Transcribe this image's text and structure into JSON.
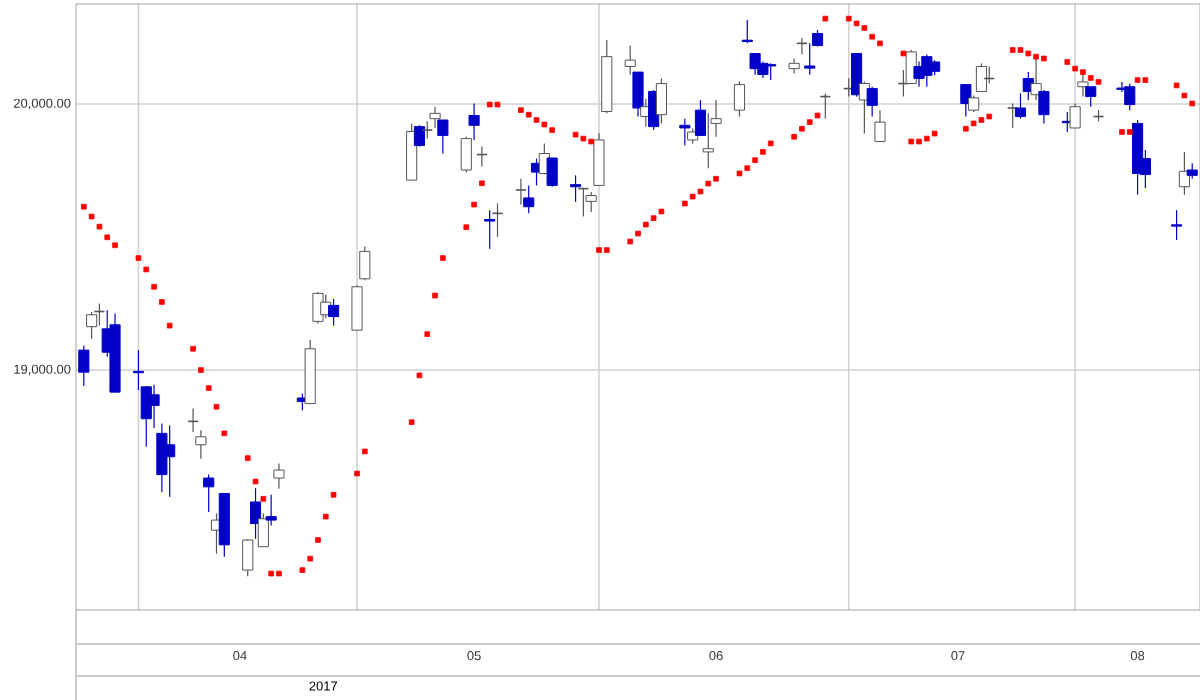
{
  "chart_data": {
    "type": "candlestick",
    "x": [
      "2017-03-27",
      "2017-03-28",
      "2017-03-29",
      "2017-03-30",
      "2017-03-31",
      "2017-04-03",
      "2017-04-04",
      "2017-04-05",
      "2017-04-06",
      "2017-04-07",
      "2017-04-10",
      "2017-04-11",
      "2017-04-12",
      "2017-04-13",
      "2017-04-14",
      "2017-04-17",
      "2017-04-18",
      "2017-04-19",
      "2017-04-20",
      "2017-04-21",
      "2017-04-24",
      "2017-04-25",
      "2017-04-26",
      "2017-04-27",
      "2017-04-28",
      "2017-05-01",
      "2017-05-02",
      "2017-05-08",
      "2017-05-09",
      "2017-05-10",
      "2017-05-11",
      "2017-05-12",
      "2017-05-15",
      "2017-05-16",
      "2017-05-17",
      "2017-05-18",
      "2017-05-19",
      "2017-05-22",
      "2017-05-23",
      "2017-05-24",
      "2017-05-25",
      "2017-05-26",
      "2017-05-29",
      "2017-05-30",
      "2017-05-31",
      "2017-06-01",
      "2017-06-02",
      "2017-06-05",
      "2017-06-06",
      "2017-06-07",
      "2017-06-08",
      "2017-06-09",
      "2017-06-12",
      "2017-06-13",
      "2017-06-14",
      "2017-06-15",
      "2017-06-16",
      "2017-06-19",
      "2017-06-20",
      "2017-06-21",
      "2017-06-22",
      "2017-06-23",
      "2017-06-26",
      "2017-06-27",
      "2017-06-28",
      "2017-06-29",
      "2017-06-30",
      "2017-07-03",
      "2017-07-04",
      "2017-07-05",
      "2017-07-06",
      "2017-07-07",
      "2017-07-10",
      "2017-07-11",
      "2017-07-12",
      "2017-07-13",
      "2017-07-14",
      "2017-07-18",
      "2017-07-19",
      "2017-07-20",
      "2017-07-21",
      "2017-07-24",
      "2017-07-25",
      "2017-07-26",
      "2017-07-27",
      "2017-07-28",
      "2017-07-31",
      "2017-08-01",
      "2017-08-02",
      "2017-08-03",
      "2017-08-04",
      "2017-08-07",
      "2017-08-08",
      "2017-08-09",
      "2017-08-10",
      "2017-08-14",
      "2017-08-15",
      "2017-08-16"
    ],
    "ohlc": [
      [
        19075,
        19092,
        18940,
        18992
      ],
      [
        19163,
        19218,
        19118,
        19208
      ],
      [
        19220,
        19250,
        19167,
        19220
      ],
      [
        19155,
        19225,
        19050,
        19067
      ],
      [
        19170,
        19213,
        18917,
        18917
      ],
      [
        18995,
        19075,
        18925,
        18990
      ],
      [
        18937,
        18940,
        18712,
        18817
      ],
      [
        18907,
        18945,
        18782,
        18867
      ],
      [
        18762,
        18799,
        18541,
        18607
      ],
      [
        18719,
        18792,
        18524,
        18674
      ],
      [
        18807,
        18855,
        18767,
        18807
      ],
      [
        18719,
        18774,
        18667,
        18749
      ],
      [
        18594,
        18607,
        18466,
        18561
      ],
      [
        18398,
        18461,
        18310,
        18436
      ],
      [
        18536,
        18536,
        18298,
        18343
      ],
      [
        18248,
        18365,
        18225,
        18361
      ],
      [
        18504,
        18556,
        18366,
        18423
      ],
      [
        18336,
        18461,
        18336,
        18441
      ],
      [
        18449,
        18531,
        18416,
        18436
      ],
      [
        18594,
        18649,
        18554,
        18624
      ],
      [
        18895,
        18912,
        18849,
        18882
      ],
      [
        18874,
        19113,
        18874,
        19080
      ],
      [
        19183,
        19293,
        19175,
        19288
      ],
      [
        19208,
        19283,
        19195,
        19255
      ],
      [
        19243,
        19268,
        19167,
        19201
      ],
      [
        19150,
        19318,
        19150,
        19313
      ],
      [
        19343,
        19464,
        19338,
        19446
      ],
      [
        19714,
        19927,
        19714,
        19897
      ],
      [
        19915,
        19920,
        19840,
        19844
      ],
      [
        19902,
        19935,
        19870,
        19902
      ],
      [
        19945,
        19990,
        19910,
        19965
      ],
      [
        19940,
        19940,
        19814,
        19882
      ],
      [
        19752,
        19877,
        19744,
        19870
      ],
      [
        19957,
        20002,
        19865,
        19920
      ],
      [
        19810,
        19840,
        19765,
        19810
      ],
      [
        19566,
        19601,
        19456,
        19560
      ],
      [
        19589,
        19626,
        19501,
        19589
      ],
      [
        19677,
        19719,
        19622,
        19677
      ],
      [
        19647,
        19694,
        19589,
        19614
      ],
      [
        19777,
        19795,
        19694,
        19744
      ],
      [
        19739,
        19852,
        19735,
        19814
      ],
      [
        19797,
        19797,
        19689,
        19694
      ],
      [
        19697,
        19732,
        19632,
        19689
      ],
      [
        19682,
        19685,
        19577,
        19682
      ],
      [
        19634,
        19669,
        19594,
        19656
      ],
      [
        19694,
        19890,
        19694,
        19865
      ],
      [
        19972,
        20241,
        19965,
        20178
      ],
      [
        20141,
        20220,
        20110,
        20165
      ],
      [
        20120,
        20120,
        19953,
        19985
      ],
      [
        19953,
        20020,
        19915,
        19990
      ],
      [
        20047,
        20053,
        19902,
        19915
      ],
      [
        19960,
        20096,
        19927,
        20077
      ],
      [
        19920,
        19945,
        19844,
        19910
      ],
      [
        19865,
        19908,
        19852,
        19895
      ],
      [
        19977,
        20015,
        19882,
        19882
      ],
      [
        19820,
        19965,
        19759,
        19832
      ],
      [
        19927,
        20015,
        19877,
        19945
      ],
      [
        19977,
        20085,
        19953,
        20073
      ],
      [
        20240,
        20316,
        20228,
        20235
      ],
      [
        20190,
        20190,
        20110,
        20133
      ],
      [
        20153,
        20160,
        20098,
        20111
      ],
      [
        20148,
        20153,
        20090,
        20143
      ],
      [
        20133,
        20171,
        20115,
        20153
      ],
      [
        20228,
        20248,
        20186,
        20228
      ],
      [
        20143,
        20228,
        20110,
        20135
      ],
      [
        20265,
        20278,
        20216,
        20220
      ],
      [
        20028,
        20040,
        19945,
        20028
      ],
      [
        20058,
        20096,
        20028,
        20058
      ],
      [
        20190,
        20190,
        20028,
        20035
      ],
      [
        20015,
        20085,
        19889,
        20077
      ],
      [
        20058,
        20065,
        19953,
        19995
      ],
      [
        19859,
        19977,
        19859,
        19932
      ],
      [
        20077,
        20128,
        20028,
        20077
      ],
      [
        20077,
        20203,
        20077,
        20196
      ],
      [
        20141,
        20160,
        20065,
        20096
      ],
      [
        20178,
        20186,
        20065,
        20108
      ],
      [
        20158,
        20165,
        20108,
        20123
      ],
      [
        20073,
        20073,
        19953,
        20002
      ],
      [
        19977,
        20032,
        19970,
        20023
      ],
      [
        20047,
        20153,
        20047,
        20141
      ],
      [
        20096,
        20141,
        20077,
        20096
      ],
      [
        19985,
        20002,
        19910,
        19985
      ],
      [
        19985,
        20040,
        19945,
        19953
      ],
      [
        20096,
        20120,
        20015,
        20047
      ],
      [
        20035,
        20171,
        20015,
        20077
      ],
      [
        20047,
        20053,
        19927,
        19960
      ],
      [
        19935,
        19970,
        19895,
        19930
      ],
      [
        19910,
        20002,
        19910,
        19990
      ],
      [
        20065,
        20111,
        20028,
        20083
      ],
      [
        20065,
        20065,
        19990,
        20028
      ],
      [
        19953,
        19977,
        19935,
        19953
      ],
      [
        20060,
        20083,
        20045,
        20055
      ],
      [
        20065,
        20077,
        19977,
        19998
      ],
      [
        19927,
        19940,
        19659,
        19739
      ],
      [
        19795,
        19827,
        19684,
        19735
      ],
      [
        19546,
        19601,
        19489,
        19541
      ],
      [
        19689,
        19820,
        19659,
        19747
      ],
      [
        19752,
        19777,
        19719,
        19732
      ]
    ],
    "series": [
      {
        "type": "scatter",
        "color": "#ff0000",
        "marker": "square",
        "values": [
          19614,
          19577,
          19539,
          19499,
          19469,
          19421,
          19378,
          19313,
          19256,
          19167,
          19080,
          19000,
          18932,
          18862,
          18762,
          18669,
          18581,
          18516,
          18235,
          18235,
          18248,
          18291,
          18361,
          18449,
          18531,
          18611,
          18694,
          18804,
          18980,
          19135,
          19280,
          19421,
          19537,
          19622,
          19702,
          19998,
          19998,
          19977,
          19960,
          19940,
          19923,
          19902,
          19885,
          19870,
          19859,
          19451,
          19451,
          19483,
          19513,
          19547,
          19571,
          19596,
          19626,
          19652,
          19671,
          19701,
          19719,
          19739,
          19759,
          19789,
          19820,
          19852,
          19877,
          19907,
          19932,
          19957,
          20321,
          20321,
          20303,
          20286,
          20253,
          20228,
          20190,
          19859,
          19859,
          19870,
          19889,
          19907,
          19927,
          19940,
          19953,
          20203,
          20203,
          20190,
          20178,
          20171,
          20158,
          20133,
          20120,
          20098,
          20083,
          19895,
          19895,
          20090,
          20090,
          20070,
          20032,
          20002
        ]
      }
    ],
    "xlim": [
      "2017-03-26",
      "2017-08-17"
    ],
    "xticks": [
      {
        "value": "2017-04-03",
        "label": null
      },
      {
        "value": "2017-04-16",
        "label": "04"
      },
      {
        "value": "2017-05-01",
        "label": null
      },
      {
        "value": "2017-05-16",
        "label": "05"
      },
      {
        "value": "2017-06-01",
        "label": null
      },
      {
        "value": "2017-06-16",
        "label": "06"
      },
      {
        "value": "2017-07-03",
        "label": null
      },
      {
        "value": "2017-07-17",
        "label": "07"
      },
      {
        "value": "2017-08-01",
        "label": null
      },
      {
        "value": "2017-08-09",
        "label": "08"
      }
    ],
    "ylim": [
      18098,
      20376
    ],
    "yticks": [
      {
        "value": 19000,
        "label": "19,000.00"
      },
      {
        "value": 20000,
        "label": "20,000.00"
      }
    ],
    "xlabel": "2017",
    "grid": true
  }
}
